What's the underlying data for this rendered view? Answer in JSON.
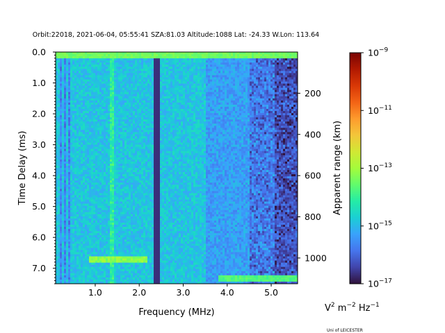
{
  "chart_data": {
    "type": "heatmap",
    "title": "Orbit:22018, 2021-06-04, 05:55:41 SZA:81.03 Altitude:1088 Lat: -24.33 W.Lon: 113.64",
    "xlabel": "Frequency (MHz)",
    "ylabel": "Time Delay (ms)",
    "y2label": "Apparent range (km)",
    "xlim": [
      0.1,
      5.6
    ],
    "ylim": [
      7.5,
      0.0
    ],
    "xticks": [
      1.0,
      2.0,
      3.0,
      4.0,
      5.0
    ],
    "xtick_labels": [
      "1.0",
      "2.0",
      "3.0",
      "4.0",
      "5.0"
    ],
    "yticks": [
      0.0,
      1.0,
      2.0,
      3.0,
      4.0,
      5.0,
      6.0,
      7.0
    ],
    "ytick_labels": [
      "0.0",
      "1.0",
      "2.0",
      "3.0",
      "4.0",
      "5.0",
      "6.0",
      "7.0"
    ],
    "y2_range_km": [
      0,
      1125
    ],
    "y2ticks": [
      200,
      400,
      600,
      800,
      1000
    ],
    "y2tick_labels": [
      "200",
      "400",
      "600",
      "800",
      "1000"
    ],
    "colorbar": {
      "scale": "log",
      "range": [
        1e-17,
        1e-09
      ],
      "tick_exponents": [
        -9,
        -11,
        -13,
        -15,
        -17
      ],
      "tick_labels": [
        "10",
        "10",
        "10",
        "10",
        "10"
      ],
      "tick_superscripts": [
        "−9",
        "−11",
        "−13",
        "−15",
        "−17"
      ],
      "colormap": "turbo",
      "colors": [
        "#30123b",
        "#4145ab",
        "#4675ed",
        "#39a2fc",
        "#1bcfd4",
        "#24eca6",
        "#61fc6c",
        "#a4fc3b",
        "#d1e834",
        "#f3c63a",
        "#fe9b2d",
        "#f36315",
        "#d93806",
        "#b11901",
        "#7a0403"
      ]
    },
    "units_label": {
      "base": "V",
      "sup1": "2",
      "mid1": " m",
      "sup2": "−2",
      "mid2": " Hz",
      "sup3": "−1"
    },
    "features": [
      {
        "name": "dark vertical band",
        "freq_mhz": 2.38,
        "delay_ms": [
          0.1,
          7.5
        ]
      },
      {
        "name": "bright ground echo",
        "freq_mhz": [
          0.85,
          2.2
        ],
        "delay_ms": 6.7
      },
      {
        "name": "bright bottom echo",
        "freq_mhz": [
          3.8,
          5.6
        ],
        "delay_ms": 7.3
      },
      {
        "name": "top bright strip",
        "freq_mhz": [
          0.1,
          5.6
        ],
        "delay_ms": 0.15
      }
    ]
  },
  "credit": "Uni of LEICESTER"
}
